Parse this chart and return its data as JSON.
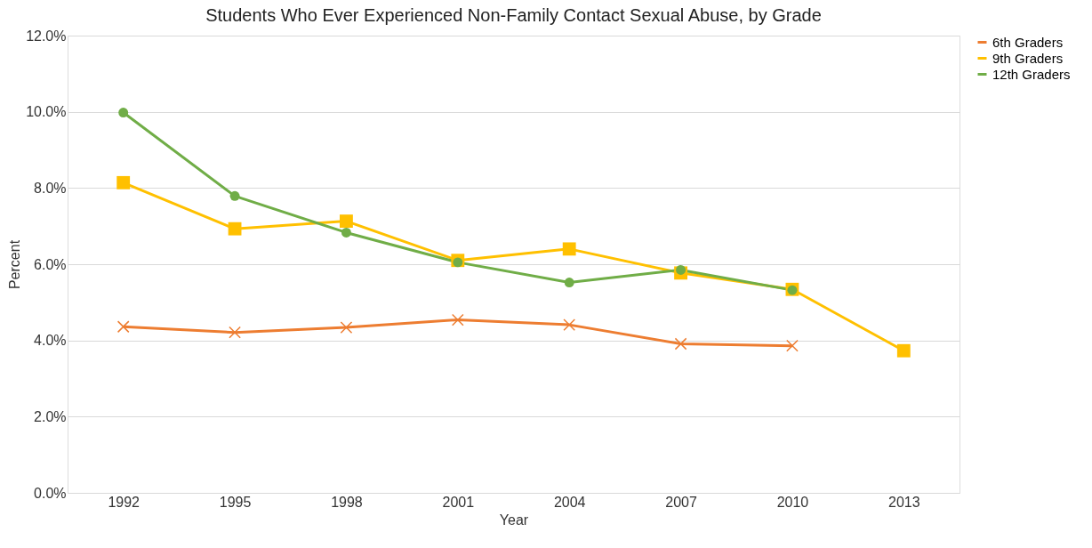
{
  "chart_data": {
    "type": "line",
    "title": "Students Who Ever Experienced Non-Family Contact Sexual Abuse, by Grade",
    "xlabel": "Year",
    "ylabel": "Percent",
    "categories": [
      "1992",
      "1995",
      "1998",
      "2001",
      "2004",
      "2007",
      "2010",
      "2013"
    ],
    "series": [
      {
        "name": "6th Graders",
        "color": "#ed7d31",
        "marker": "cross",
        "values": [
          4.36,
          4.21,
          4.34,
          4.54,
          4.41,
          3.91,
          3.86,
          null
        ]
      },
      {
        "name": "9th Graders",
        "color": "#ffc000",
        "marker": "square",
        "values": [
          8.14,
          6.93,
          7.13,
          6.1,
          6.4,
          5.77,
          5.34,
          3.73
        ]
      },
      {
        "name": "12th Graders",
        "color": "#70ad47",
        "marker": "circle",
        "values": [
          9.98,
          7.79,
          6.83,
          6.05,
          5.52,
          5.85,
          5.32,
          null
        ]
      }
    ],
    "ylim": [
      0,
      12
    ],
    "yticks": [
      {
        "value": 0,
        "label": "0.0%"
      },
      {
        "value": 2,
        "label": "2.0%"
      },
      {
        "value": 4,
        "label": "4.0%"
      },
      {
        "value": 6,
        "label": "6.0%"
      },
      {
        "value": 8,
        "label": "8.0%"
      },
      {
        "value": 10,
        "label": "10.0%"
      },
      {
        "value": 12,
        "label": "12.0%"
      }
    ],
    "grid": "y",
    "legend": "right",
    "line_style": "solid"
  }
}
